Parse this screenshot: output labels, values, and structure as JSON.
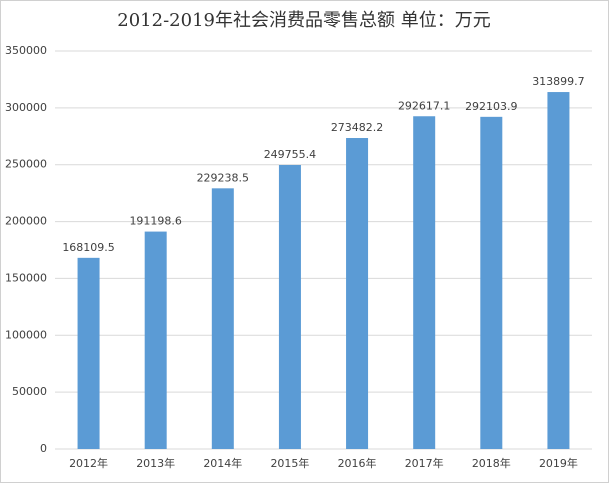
{
  "chart_data": {
    "type": "bar",
    "title": "2012-2019年社会消费品零售总额 单位：万元",
    "categories": [
      "2012年",
      "2013年",
      "2014年",
      "2015年",
      "2016年",
      "2017年",
      "2018年",
      "2019年"
    ],
    "values": [
      168109.5,
      191198.6,
      229238.5,
      249755.4,
      273482.2,
      292617.1,
      292103.9,
      313899.7
    ],
    "color": "#5b9bd5",
    "ylim": [
      0,
      350000
    ],
    "yticks": [
      0,
      50000,
      100000,
      150000,
      200000,
      250000,
      300000,
      350000
    ],
    "grid": true
  }
}
